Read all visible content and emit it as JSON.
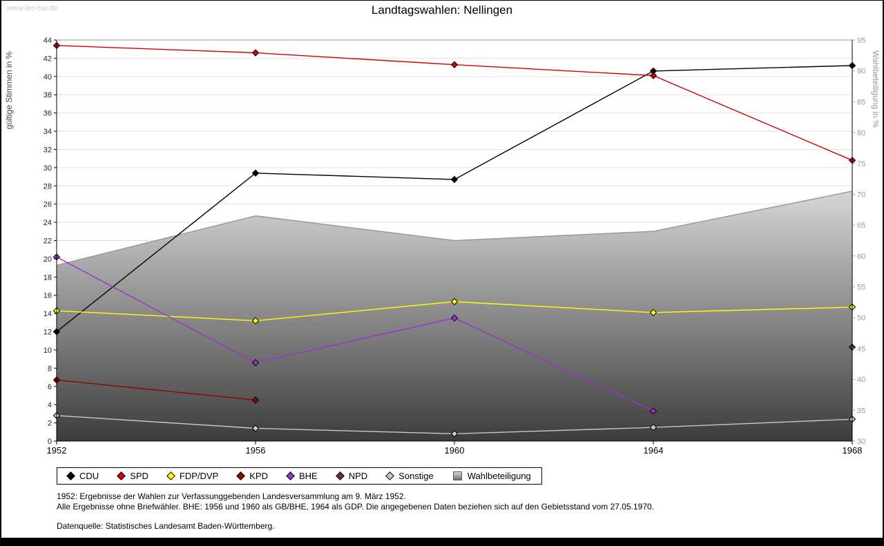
{
  "page": {
    "watermark": "www.leo-bw.de"
  },
  "chart_data": {
    "type": "line",
    "title": "Landtagswahlen: Nellingen",
    "x": [
      1952,
      1956,
      1960,
      1964,
      1968
    ],
    "left_axis": {
      "label": "gültige Stimmen in %",
      "min": 0,
      "max": 44,
      "step": 2
    },
    "right_axis": {
      "label": "Wahlbeteiligung in %",
      "min": 30,
      "max": 95,
      "step": 5
    },
    "grid": true,
    "legend_position": "bottom",
    "series": [
      {
        "name": "CDU",
        "color": "#000000",
        "values": [
          12.0,
          29.4,
          28.7,
          40.6,
          41.2
        ]
      },
      {
        "name": "SPD",
        "color": "#d40000",
        "values": [
          43.4,
          42.6,
          41.3,
          40.1,
          30.8
        ]
      },
      {
        "name": "FDP/DVP",
        "color": "#ffff00",
        "values": [
          14.3,
          13.2,
          15.3,
          14.1,
          14.7
        ]
      },
      {
        "name": "KPD",
        "color": "#990000",
        "values": [
          6.7,
          4.5,
          null,
          null,
          null
        ]
      },
      {
        "name": "BHE",
        "color": "#9933cc",
        "values": [
          20.2,
          8.6,
          13.5,
          3.3,
          null
        ]
      },
      {
        "name": "NPD",
        "color": "#663333",
        "values": [
          null,
          null,
          null,
          null,
          10.3
        ]
      },
      {
        "name": "Sonstige",
        "color": "#c8c8c8",
        "values": [
          2.8,
          1.4,
          0.8,
          1.5,
          2.4
        ]
      }
    ],
    "area_series": {
      "name": "Wahlbeteiligung",
      "axis": "right",
      "values": [
        58.5,
        66.5,
        62.5,
        64.0,
        70.5
      ],
      "fill_top": "#d6d6d6",
      "fill_bottom": "#3c3c3c",
      "stroke": "#999999"
    }
  },
  "footnotes": {
    "line1": "1952: Ergebnisse der Wahlen zur Verfassunggebenden Landesversammlung am 9. März 1952.",
    "line2": "Alle Ergebnisse ohne Briefwähler. BHE: 1956 und 1960 als GB/BHE, 1964 als GDP. Die angegebenen Daten beziehen sich auf den Gebietsstand vom 27.05.1970.",
    "source": "Datenquelle: Statistisches Landesamt Baden-Württemberg."
  }
}
